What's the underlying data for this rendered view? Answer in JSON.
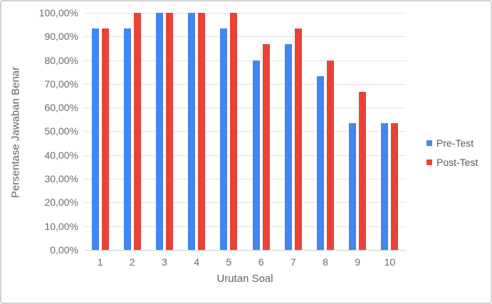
{
  "chart_data": {
    "type": "bar",
    "title": "",
    "categories": [
      "1",
      "2",
      "3",
      "4",
      "5",
      "6",
      "7",
      "8",
      "9",
      "10"
    ],
    "series": [
      {
        "name": "Pre-Test",
        "color": "#4285F4",
        "values": [
          93.33,
          93.33,
          100,
          100,
          93.33,
          80,
          86.67,
          73.33,
          53.33,
          53.33
        ]
      },
      {
        "name": "Post-Test",
        "color": "#EA4335",
        "values": [
          93.33,
          100,
          100,
          100,
          100,
          86.67,
          93.33,
          80,
          66.67,
          53.33
        ]
      }
    ],
    "xlabel": "Urutan Soal",
    "ylabel": "Persentase Jawaban Benar",
    "ylim": [
      0,
      100
    ],
    "ytick_labels_bottom_up": [
      "0,00%",
      "10,00%",
      "20,00%",
      "30,00%",
      "40,00%",
      "50,00%",
      "60,00%",
      "70,00%",
      "80,00%",
      "90,00%",
      "100,00%"
    ],
    "grid": true,
    "legend_position": "right",
    "colors": {
      "pre_test": "#4285F4",
      "post_test": "#EA4335",
      "gridline": "#E4E4E4",
      "axis_baseline": "#D0D0D0",
      "tick_text": "#6B6B6B",
      "title_text": "#5F6368",
      "frame_border": "#D3D3D3"
    }
  }
}
